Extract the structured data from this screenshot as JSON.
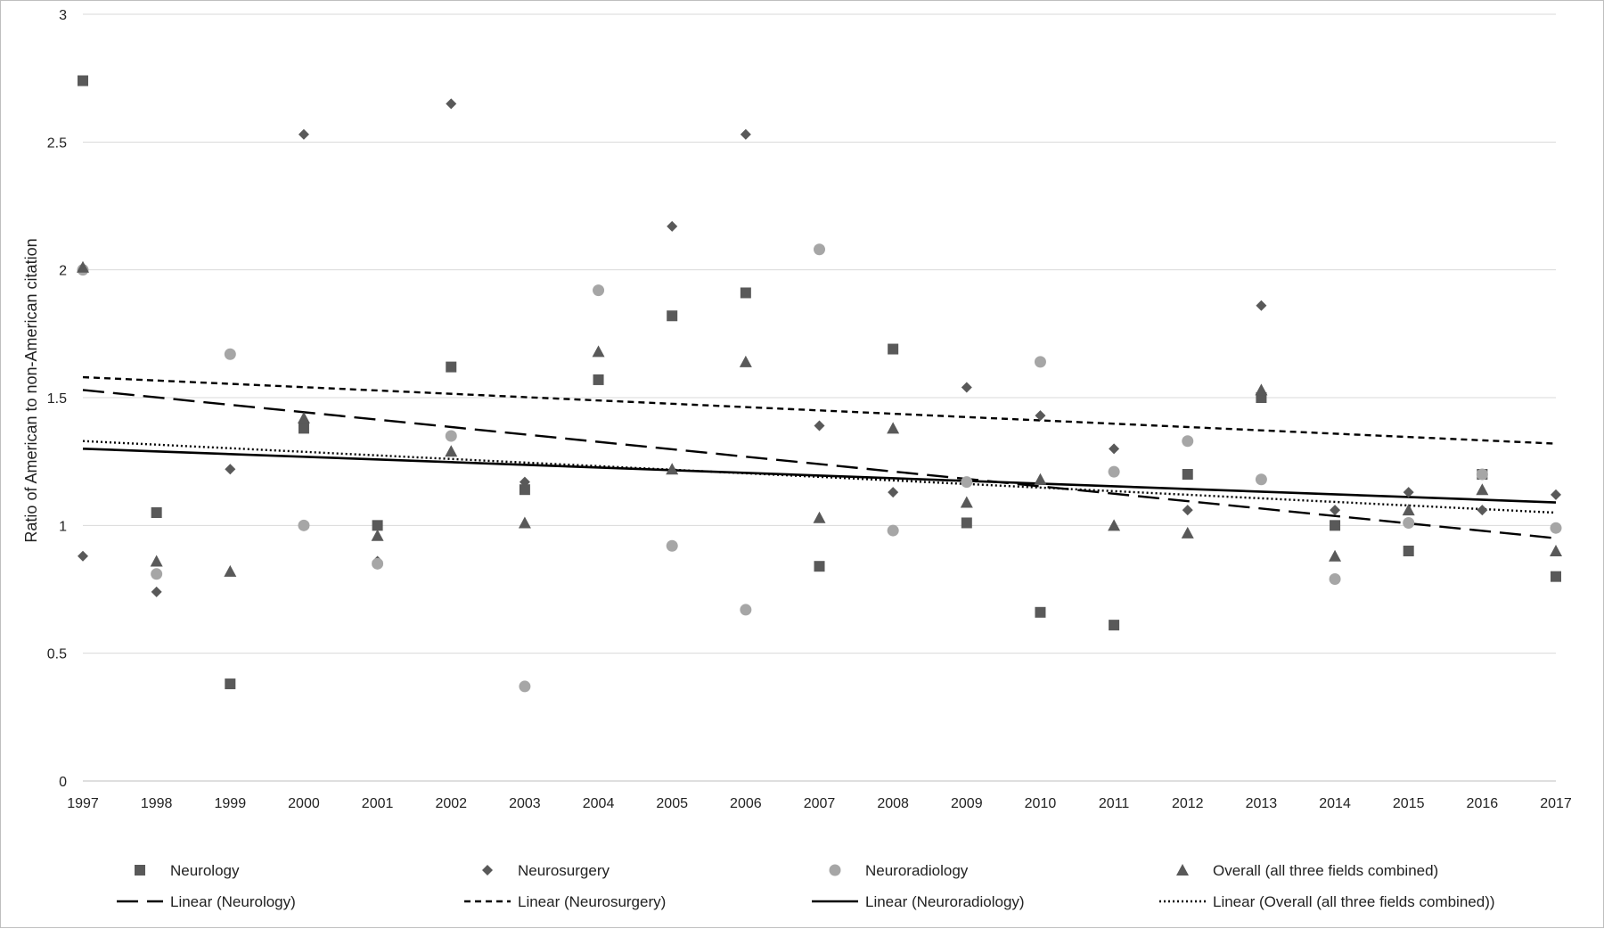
{
  "chart_data": {
    "type": "scatter",
    "title": "",
    "xlabel": "",
    "ylabel": "Ratio of American to non-American citation",
    "x": [
      1997,
      1998,
      1999,
      2000,
      2001,
      2002,
      2003,
      2004,
      2005,
      2006,
      2007,
      2008,
      2009,
      2010,
      2011,
      2012,
      2013,
      2014,
      2015,
      2016,
      2017
    ],
    "xlim": [
      1997,
      2017
    ],
    "ylim": [
      0,
      3
    ],
    "yticks": [
      0,
      0.5,
      1,
      1.5,
      2,
      2.5,
      3
    ],
    "ytick_labels": [
      "0",
      "0.5",
      "1",
      "1.5",
      "2",
      "2.5",
      "3"
    ],
    "xtick_labels": [
      "1997",
      "1998",
      "1999",
      "2000",
      "2001",
      "2002",
      "2003",
      "2004",
      "2005",
      "2006",
      "2007",
      "2008",
      "2009",
      "2010",
      "2011",
      "2012",
      "2013",
      "2014",
      "2015",
      "2016",
      "2017"
    ],
    "grid": "horizontal",
    "legend_position": "bottom",
    "series": [
      {
        "name": "Neurology",
        "marker": "square",
        "color": "#595959",
        "values": [
          2.74,
          1.05,
          0.38,
          1.38,
          1.0,
          1.62,
          1.14,
          1.57,
          1.82,
          1.91,
          0.84,
          1.69,
          1.01,
          0.66,
          0.61,
          1.2,
          1.5,
          1.0,
          0.9,
          1.2,
          0.8
        ]
      },
      {
        "name": "Neurosurgery",
        "marker": "diamond",
        "color": "#595959",
        "values": [
          0.88,
          0.74,
          1.22,
          2.53,
          0.86,
          2.65,
          1.17,
          null,
          2.17,
          2.53,
          1.39,
          1.13,
          1.54,
          1.43,
          1.3,
          1.06,
          1.86,
          1.06,
          1.13,
          1.06,
          1.12
        ]
      },
      {
        "name": "Neuroradiology",
        "marker": "circle",
        "color": "#a6a6a6",
        "values": [
          2.0,
          0.81,
          1.67,
          1.0,
          0.85,
          1.35,
          0.37,
          1.92,
          0.92,
          0.67,
          2.08,
          0.98,
          1.17,
          1.64,
          1.21,
          1.33,
          1.18,
          0.79,
          1.01,
          1.2,
          0.99
        ]
      },
      {
        "name": "Overall (all three fields combined)",
        "marker": "triangle",
        "color": "#595959",
        "values": [
          2.01,
          0.86,
          0.82,
          1.42,
          0.96,
          1.29,
          1.01,
          1.68,
          1.22,
          1.64,
          1.03,
          1.38,
          1.09,
          1.18,
          1.0,
          0.97,
          1.53,
          0.88,
          1.06,
          1.14,
          0.9
        ]
      }
    ],
    "trendlines": [
      {
        "name": "Linear (Neurology)",
        "style": "long-dash",
        "start": 1.53,
        "end": 0.95
      },
      {
        "name": "Linear (Neurosurgery)",
        "style": "short-dash",
        "start": 1.58,
        "end": 1.32
      },
      {
        "name": "Linear (Neuroradiology)",
        "style": "solid",
        "start": 1.3,
        "end": 1.09
      },
      {
        "name": "Linear (Overall (all three fields combined))",
        "style": "dotted",
        "start": 1.33,
        "end": 1.05
      }
    ]
  }
}
